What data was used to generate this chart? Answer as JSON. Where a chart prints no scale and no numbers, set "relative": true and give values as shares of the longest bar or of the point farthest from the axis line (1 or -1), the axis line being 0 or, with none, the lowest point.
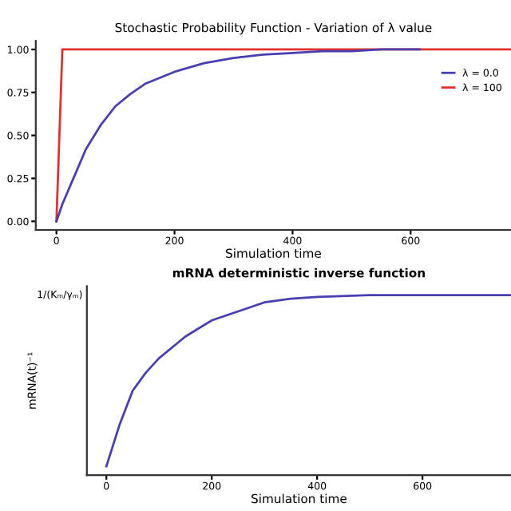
{
  "chart_data": [
    {
      "type": "line",
      "title": "Stochastic Probability Function - Variation of λ value",
      "xlabel": "Simulation time",
      "xlim": [
        -35,
        770
      ],
      "xticks": [
        0,
        200,
        400,
        600
      ],
      "ylim": [
        -0.05,
        1.05
      ],
      "yticks": [
        {
          "value": 0,
          "label": "0.00"
        },
        0.25,
        {
          "value": 0.5,
          "label": "0.50"
        },
        0.75,
        {
          "value": 1,
          "label": "1.00"
        }
      ],
      "grid": false,
      "legend": "upper right",
      "series": [
        {
          "name": "λ = 0.0",
          "color": "#4a3fb0",
          "x": [
            0,
            10,
            25,
            50,
            75,
            100,
            125,
            150,
            200,
            250,
            300,
            350,
            400,
            450,
            500,
            550,
            615
          ],
          "values": [
            0,
            0.1,
            0.22,
            0.42,
            0.56,
            0.67,
            0.74,
            0.8,
            0.87,
            0.92,
            0.95,
            0.97,
            0.98,
            0.99,
            0.99,
            1.0,
            1.0
          ]
        },
        {
          "name": "λ = 100",
          "color": "#e03030",
          "x": [
            0,
            10,
            770
          ],
          "values": [
            0,
            1.0,
            1.0
          ]
        }
      ]
    },
    {
      "type": "line",
      "title": "mRNA deterministic inverse function",
      "xlabel": "Simulation time",
      "ylabel": "mRNA(t)⁻¹",
      "xlim": [
        -37,
        768
      ],
      "xticks": [
        0,
        200,
        400,
        600
      ],
      "relative": true,
      "annotations": [
        "1/(Kₘ/γₘ)"
      ],
      "grid": false,
      "legend": false,
      "series": [
        {
          "color": "#4a3fb0",
          "x": [
            0,
            25,
            50,
            75,
            100,
            150,
            200,
            250,
            300,
            350,
            400,
            500,
            600,
            768
          ],
          "values": [
            0.05,
            0.28,
            0.47,
            0.57,
            0.65,
            0.77,
            0.86,
            0.91,
            0.96,
            0.98,
            0.99,
            1.0,
            1.0,
            1.0
          ]
        }
      ]
    }
  ]
}
